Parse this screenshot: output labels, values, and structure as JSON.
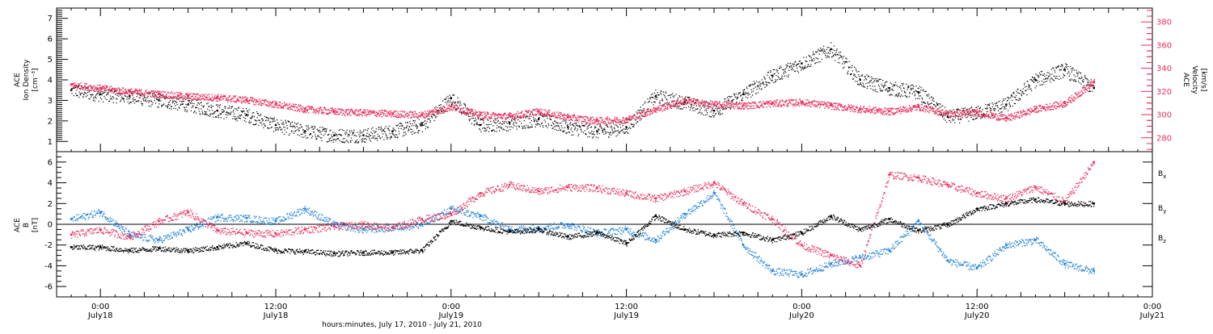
{
  "colors": {
    "black": "#000000",
    "pink": "#e8305c",
    "blue": "#1f82d8"
  },
  "xaxis": {
    "caption": "hours:minutes, July 17, 2010 - July 21, 2010",
    "range_hours": [
      -3,
      72
    ],
    "ticks": [
      {
        "time": "0:00",
        "date": "July18",
        "h": 0
      },
      {
        "time": "12:00",
        "date": "July18",
        "h": 12
      },
      {
        "time": "0:00",
        "date": "July19",
        "h": 24
      },
      {
        "time": "12:00",
        "date": "July19",
        "h": 36
      },
      {
        "time": "0:00",
        "date": "July20",
        "h": 48
      },
      {
        "time": "12:00",
        "date": "July20",
        "h": 60
      },
      {
        "time": "0:00",
        "date": "July21",
        "h": 72
      }
    ]
  },
  "top_panel": {
    "left_label_1": "ACE",
    "left_label_2": "Ion Density",
    "left_label_3": "[cm⁻³]",
    "right_label_1": "ACE",
    "right_label_2": "Velocity",
    "right_label_3": "[km/s]",
    "ylim_left": [
      0.5,
      7.5
    ],
    "yticks_left": [
      "1",
      "2",
      "3",
      "4",
      "5",
      "6",
      "7"
    ],
    "ylim_right": [
      268,
      392
    ],
    "yticks_right": [
      "280",
      "300",
      "320",
      "340",
      "360",
      "380"
    ]
  },
  "bottom_panel": {
    "left_label_1": "ACE",
    "left_label_2": "B",
    "left_label_3": "[nT]",
    "ylim": [
      -7,
      7
    ],
    "yticks": [
      "-6",
      "-4",
      "-2",
      "0",
      "2",
      "4",
      "6"
    ],
    "legend": [
      {
        "name": "B",
        "sub": "x",
        "color": "#000000"
      },
      {
        "name": "B",
        "sub": "y",
        "color": "#1f82d8"
      },
      {
        "name": "B",
        "sub": "z",
        "color": "#e8305c"
      }
    ]
  },
  "chart_data": [
    {
      "type": "scatter",
      "panel": "top",
      "xlabel": "hours:minutes, July 17, 2010 - July 21, 2010",
      "ylabel": "ACE Ion Density [cm⁻³]",
      "y2label": "ACE Velocity [km/s]",
      "xlim_hours": [
        -3,
        72
      ],
      "ylim": [
        0.5,
        7.5
      ],
      "y2lim": [
        268,
        392
      ],
      "series": [
        {
          "color": "#000000",
          "axis": "left",
          "x": [
            -2,
            0,
            2,
            4,
            6,
            8,
            10,
            12,
            14,
            16,
            18,
            20,
            22,
            24,
            26,
            28,
            30,
            32,
            34,
            36,
            38,
            40,
            42,
            44,
            46,
            48,
            50,
            52,
            54,
            56,
            58,
            60,
            62,
            64,
            66,
            68
          ],
          "y": [
            3.5,
            3.3,
            3.2,
            3.0,
            2.8,
            2.5,
            2.3,
            1.8,
            1.5,
            1.3,
            1.3,
            1.5,
            1.8,
            3.1,
            1.8,
            1.9,
            2.1,
            1.7,
            1.5,
            1.7,
            3.2,
            2.9,
            2.5,
            3.3,
            4.2,
            4.8,
            5.5,
            4.0,
            3.6,
            3.4,
            2.2,
            2.4,
            2.8,
            4.0,
            4.5,
            3.6
          ]
        },
        {
          "color": "#e8305c",
          "axis": "right",
          "x": [
            -2,
            0,
            2,
            4,
            6,
            8,
            10,
            12,
            14,
            16,
            18,
            20,
            22,
            24,
            26,
            28,
            30,
            32,
            34,
            36,
            38,
            40,
            42,
            44,
            46,
            48,
            50,
            52,
            54,
            56,
            58,
            60,
            62,
            64,
            66,
            68
          ],
          "y": [
            326,
            323,
            320,
            318,
            316,
            315,
            313,
            309,
            305,
            303,
            302,
            301,
            300,
            307,
            300,
            299,
            303,
            298,
            295,
            296,
            305,
            312,
            309,
            308,
            310,
            311,
            308,
            305,
            303,
            307,
            301,
            302,
            297,
            305,
            310,
            328
          ]
        }
      ]
    },
    {
      "type": "scatter",
      "panel": "bottom",
      "xlabel": "hours:minutes, July 17, 2010 - July 21, 2010",
      "ylabel": "ACE B [nT]",
      "xlim_hours": [
        -3,
        72
      ],
      "ylim": [
        -7,
        7
      ],
      "series": [
        {
          "name": "Bx",
          "color": "#000000",
          "x": [
            -2,
            0,
            2,
            4,
            6,
            8,
            10,
            12,
            14,
            16,
            18,
            20,
            22,
            24,
            26,
            28,
            30,
            32,
            34,
            36,
            38,
            40,
            42,
            44,
            46,
            48,
            50,
            52,
            54,
            56,
            58,
            60,
            62,
            64,
            66,
            68
          ],
          "y": [
            -2.2,
            -2.2,
            -2.5,
            -2.3,
            -2.5,
            -2.2,
            -1.8,
            -2.5,
            -2.6,
            -2.8,
            -2.7,
            -2.7,
            -2.5,
            0.3,
            -0.3,
            -0.7,
            -0.5,
            -1.2,
            -0.8,
            -1.8,
            0.8,
            -0.5,
            -1.0,
            -0.8,
            -1.5,
            -0.8,
            0.8,
            -0.5,
            0.5,
            -0.6,
            0.0,
            1.5,
            2.0,
            2.4,
            2.0,
            2.0
          ]
        },
        {
          "name": "By",
          "color": "#1f82d8",
          "x": [
            -2,
            0,
            2,
            4,
            6,
            8,
            10,
            12,
            14,
            16,
            18,
            20,
            22,
            24,
            26,
            28,
            30,
            32,
            34,
            36,
            38,
            40,
            42,
            44,
            46,
            48,
            50,
            52,
            54,
            56,
            58,
            60,
            62,
            64,
            66,
            68
          ],
          "y": [
            0.5,
            1.2,
            -1.0,
            -1.5,
            -0.5,
            0.7,
            0.6,
            0.3,
            1.5,
            0.0,
            -0.5,
            -0.3,
            0.0,
            1.5,
            0.8,
            -0.5,
            -0.3,
            0.0,
            -0.8,
            -0.5,
            -1.5,
            1.0,
            3.0,
            -2.0,
            -4.5,
            -4.8,
            -3.8,
            -3.2,
            -2.5,
            0.3,
            -3.5,
            -4.2,
            -2.0,
            -1.5,
            -3.8,
            -4.5
          ]
        },
        {
          "name": "Bz",
          "color": "#e8305c",
          "x": [
            -2,
            0,
            2,
            4,
            6,
            8,
            10,
            12,
            14,
            16,
            18,
            20,
            22,
            24,
            26,
            28,
            30,
            32,
            34,
            36,
            38,
            40,
            42,
            44,
            46,
            48,
            50,
            52,
            54,
            56,
            58,
            60,
            62,
            64,
            66,
            68
          ],
          "y": [
            -1.0,
            -0.5,
            -1.2,
            0.3,
            1.2,
            -0.6,
            -0.8,
            -0.9,
            -0.5,
            -0.2,
            0.0,
            -0.3,
            0.5,
            1.0,
            3.0,
            3.8,
            3.2,
            3.6,
            3.5,
            3.0,
            2.5,
            3.2,
            4.0,
            2.0,
            0.5,
            -2.0,
            -3.0,
            -4.0,
            4.8,
            4.5,
            3.8,
            3.0,
            2.5,
            3.6,
            2.2,
            6.0
          ]
        }
      ]
    }
  ]
}
